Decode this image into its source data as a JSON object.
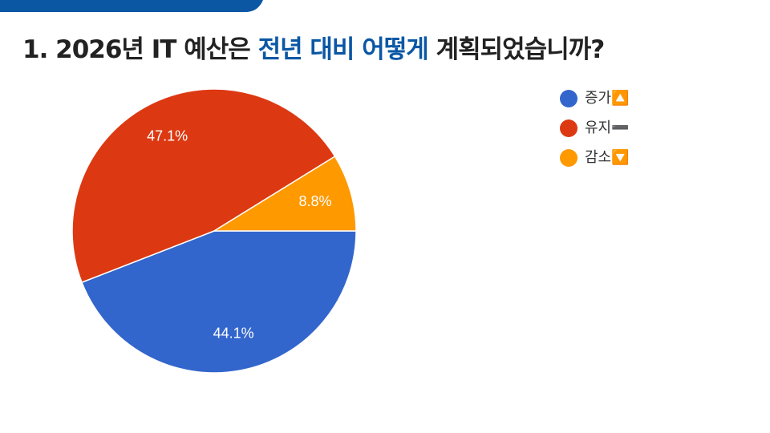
{
  "chart_data": {
    "type": "pie",
    "title_parts": [
      "1. 2026년 IT 예산은 ",
      "전년 대비 어떻게",
      " 계획되었습니까?"
    ],
    "categories": [
      "증가🔼",
      "유지➖",
      "감소🔽"
    ],
    "values": [
      44.1,
      47.1,
      8.8
    ],
    "value_labels": [
      "44.1%",
      "47.1%",
      "8.8%"
    ],
    "colors": [
      "#3366cc",
      "#dc3912",
      "#ff9900"
    ],
    "legend": "top-right"
  }
}
